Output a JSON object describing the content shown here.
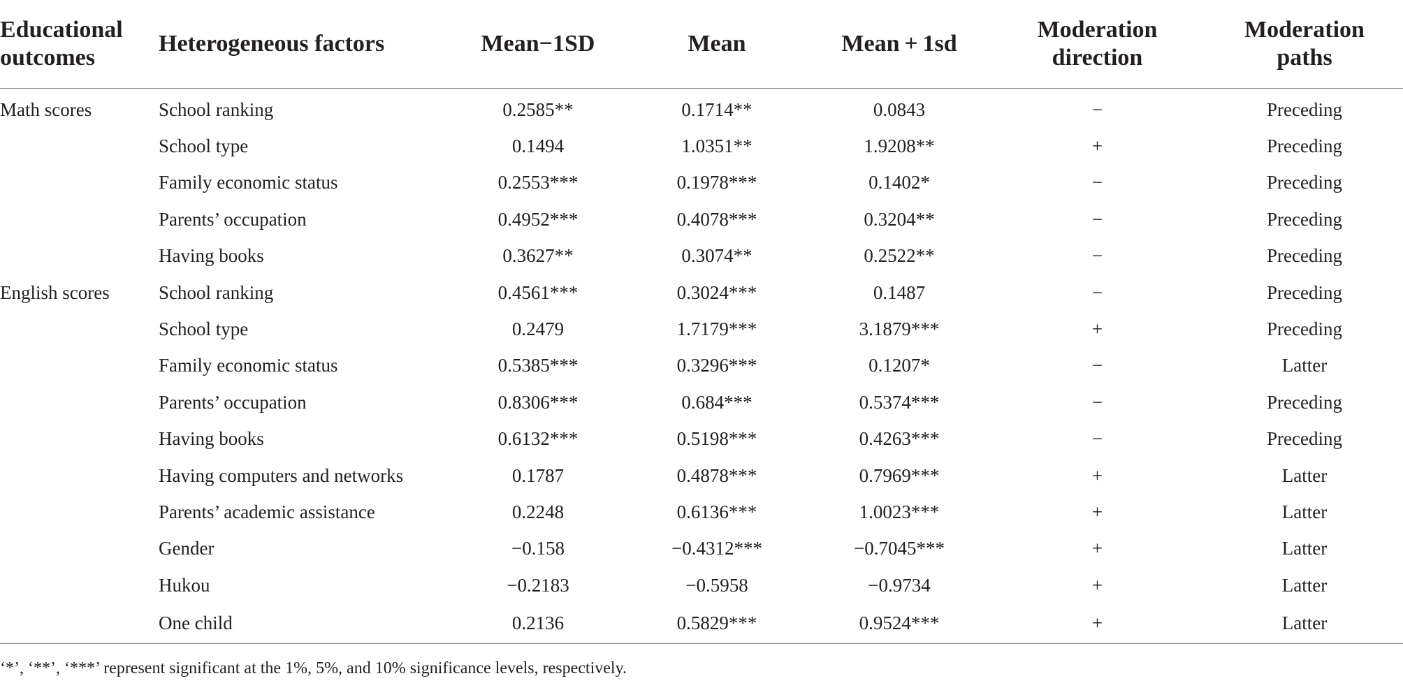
{
  "table": {
    "headers": {
      "outcome": [
        "Educational",
        "outcomes"
      ],
      "factor": "Heterogeneous factors",
      "minus": "Mean−1SD",
      "mean": "Mean",
      "plus": "Mean + 1sd",
      "direction": [
        "Moderation",
        "direction"
      ],
      "paths": [
        "Moderation",
        "paths"
      ]
    },
    "rows": [
      {
        "outcome": "Math scores",
        "factor": "School ranking",
        "minus": "0.2585**",
        "mean": "0.1714**",
        "plus": "0.0843",
        "direction": "−",
        "path": "Preceding"
      },
      {
        "outcome": "",
        "factor": "School type",
        "minus": "0.1494",
        "mean": "1.0351**",
        "plus": "1.9208**",
        "direction": "+",
        "path": "Preceding"
      },
      {
        "outcome": "",
        "factor": "Family economic status",
        "minus": "0.2553***",
        "mean": "0.1978***",
        "plus": "0.1402*",
        "direction": "−",
        "path": "Preceding"
      },
      {
        "outcome": "",
        "factor": "Parents’ occupation",
        "minus": "0.4952***",
        "mean": "0.4078***",
        "plus": "0.3204**",
        "direction": "−",
        "path": "Preceding"
      },
      {
        "outcome": "",
        "factor": "Having books",
        "minus": "0.3627**",
        "mean": "0.3074**",
        "plus": "0.2522**",
        "direction": "−",
        "path": "Preceding"
      },
      {
        "outcome": "English scores",
        "factor": "School ranking",
        "minus": "0.4561***",
        "mean": "0.3024***",
        "plus": "0.1487",
        "direction": "−",
        "path": "Preceding"
      },
      {
        "outcome": "",
        "factor": "School type",
        "minus": "0.2479",
        "mean": "1.7179***",
        "plus": "3.1879***",
        "direction": "+",
        "path": "Preceding"
      },
      {
        "outcome": "",
        "factor": "Family economic status",
        "minus": "0.5385***",
        "mean": "0.3296***",
        "plus": "0.1207*",
        "direction": "−",
        "path": "Latter"
      },
      {
        "outcome": "",
        "factor": "Parents’ occupation",
        "minus": "0.8306***",
        "mean": "0.684***",
        "plus": "0.5374***",
        "direction": "−",
        "path": "Preceding"
      },
      {
        "outcome": "",
        "factor": "Having books",
        "minus": "0.6132***",
        "mean": "0.5198***",
        "plus": "0.4263***",
        "direction": "−",
        "path": "Preceding"
      },
      {
        "outcome": "",
        "factor": "Having computers and networks",
        "minus": "0.1787",
        "mean": "0.4878***",
        "plus": "0.7969***",
        "direction": "+",
        "path": "Latter"
      },
      {
        "outcome": "",
        "factor": "Parents’ academic assistance",
        "minus": "0.2248",
        "mean": "0.6136***",
        "plus": "1.0023***",
        "direction": "+",
        "path": "Latter"
      },
      {
        "outcome": "",
        "factor": "Gender",
        "minus": "−0.158",
        "mean": "−0.4312***",
        "plus": "−0.7045***",
        "direction": "+",
        "path": "Latter"
      },
      {
        "outcome": "",
        "factor": "Hukou",
        "minus": "−0.2183",
        "mean": "−0.5958",
        "plus": "−0.9734",
        "direction": "+",
        "path": "Latter"
      },
      {
        "outcome": "",
        "factor": "One child",
        "minus": "0.2136",
        "mean": "0.5829***",
        "plus": "0.9524***",
        "direction": "+",
        "path": "Latter"
      }
    ]
  },
  "footnote": "‘*’, ‘**’, ‘***’ represent significant at the 1%, 5%, and 10% significance levels, respectively."
}
